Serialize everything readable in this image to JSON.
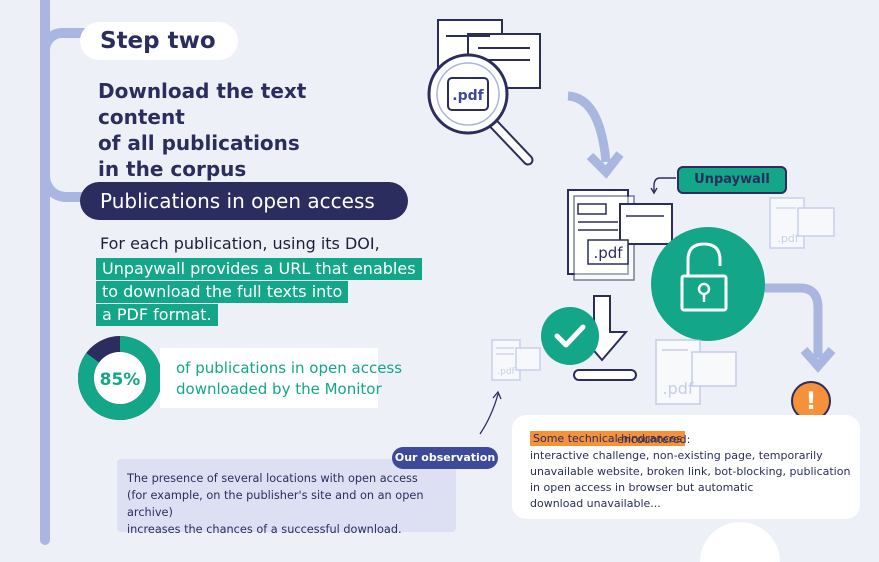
{
  "step": {
    "label": "Step two",
    "title_lines": [
      "Download the text content",
      "of all publications",
      "in the corpus"
    ]
  },
  "open_access": {
    "heading": "Publications in open access",
    "intro": "For each publication, using its DOI,",
    "highlight_lines": [
      "Unpaywall provides a URL that enables",
      "to download the full texts into",
      "a PDF format."
    ]
  },
  "stat": {
    "percent_label": "85%",
    "percent_value": 85,
    "caption_lines": [
      "of publications in open access",
      "downloaded by the Monitor"
    ]
  },
  "observation": {
    "tag": "Our observation",
    "lines": [
      "The presence of several locations with open access",
      "(for example, on the publisher's site and on an open archive)",
      "increases the chances of a successful download."
    ]
  },
  "diagram": {
    "pdf_label": ".pdf",
    "unpaywall_label": "Unpaywall",
    "warning_symbol": "!"
  },
  "hindrances": {
    "highlight": "Some technical hindrances",
    "after_highlight": " encountered:",
    "lines": [
      "interactive challenge, non-existing page, temporarily",
      "unavailable website, broken link, bot-blocking, publication",
      "in open access in browser but automatic",
      "download unavailable..."
    ]
  },
  "colors": {
    "navy": "#2b2d5e",
    "green": "#14a688",
    "orange": "#f4913a",
    "rail": "#a9b6e0",
    "background": "#eef0f7"
  }
}
